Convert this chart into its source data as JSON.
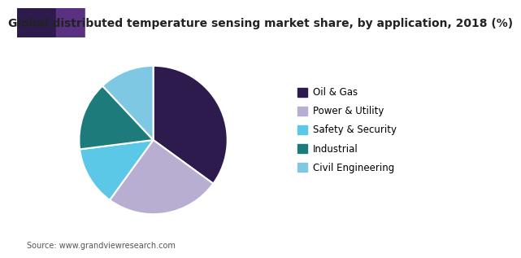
{
  "title": "Global distributed temperature sensing market share, by application, 2018 (%)",
  "labels": [
    "Oil & Gas",
    "Power & Utility",
    "Safety & Security",
    "Industrial",
    "Civil Engineering"
  ],
  "values": [
    35,
    25,
    13,
    15,
    12
  ],
  "colors": [
    "#2d1b4e",
    "#b8aed2",
    "#5bc8e8",
    "#1e7b7b",
    "#7ec8e3"
  ],
  "source": "Source: www.grandviewresearch.com",
  "startangle": 90,
  "legend_fontsize": 8.5,
  "title_fontsize": 10,
  "header_colors": [
    "#3d2060",
    "#6a3090",
    "#9b59b6",
    "#c8a0d0"
  ],
  "bg_color": "#ffffff"
}
